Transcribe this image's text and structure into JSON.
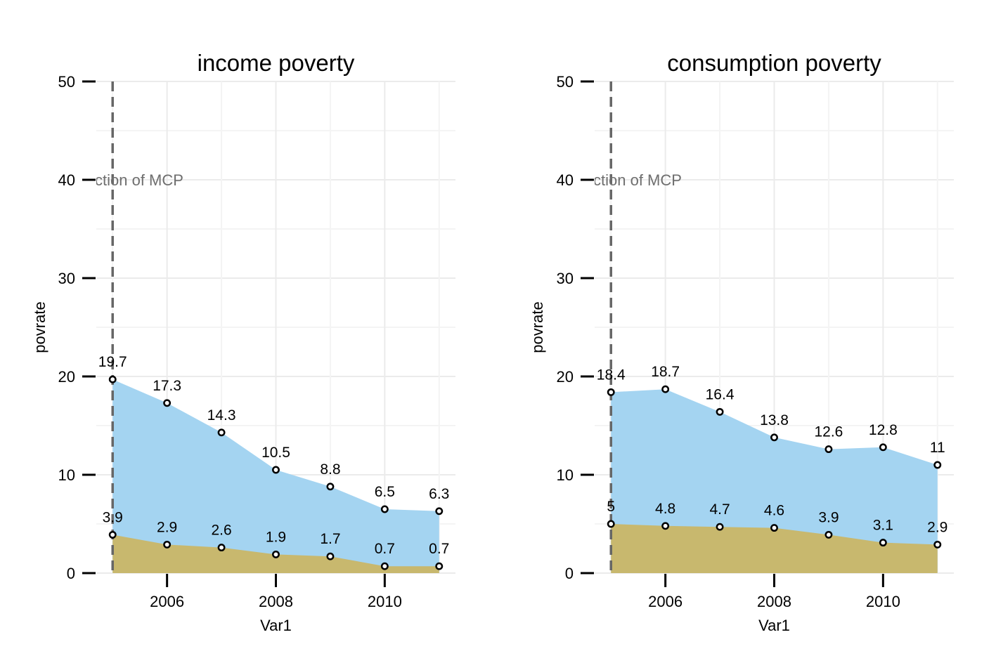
{
  "chart_data": [
    {
      "type": "area",
      "title": "income poverty",
      "xlabel": "Var1",
      "ylabel": "povrate",
      "x": [
        2005,
        2006,
        2007,
        2008,
        2009,
        2010,
        2011
      ],
      "xticks": [
        "2006",
        "2008",
        "2010"
      ],
      "yticks": [
        "0",
        "10",
        "20",
        "30",
        "40",
        "50"
      ],
      "ylim": [
        0,
        50
      ],
      "xlim": [
        2004.7,
        2011.3
      ],
      "grid": true,
      "series": [
        {
          "values": [
            19.7,
            17.3,
            14.3,
            10.5,
            8.8,
            6.5,
            6.3
          ],
          "labels": [
            "19.7",
            "17.3",
            "14.3",
            "10.5",
            "8.8",
            "6.5",
            "6.3"
          ],
          "color": "#a4d4f1"
        },
        {
          "values": [
            3.9,
            2.9,
            2.6,
            1.9,
            1.7,
            0.7,
            0.7
          ],
          "labels": [
            "3.9",
            "2.9",
            "2.6",
            "1.9",
            "1.7",
            "0.7",
            "0.7"
          ],
          "color": "#c8b86e"
        }
      ],
      "vline": {
        "x": 2005,
        "label": "ction of MCP"
      }
    },
    {
      "type": "area",
      "title": "consumption poverty",
      "xlabel": "Var1",
      "ylabel": "povrate",
      "x": [
        2005,
        2006,
        2007,
        2008,
        2009,
        2010,
        2011
      ],
      "xticks": [
        "2006",
        "2008",
        "2010"
      ],
      "yticks": [
        "0",
        "10",
        "20",
        "30",
        "40",
        "50"
      ],
      "ylim": [
        0,
        50
      ],
      "xlim": [
        2004.7,
        2011.3
      ],
      "grid": true,
      "series": [
        {
          "values": [
            18.4,
            18.7,
            16.4,
            13.8,
            12.6,
            12.8,
            11
          ],
          "labels": [
            "18.4",
            "18.7",
            "16.4",
            "13.8",
            "12.6",
            "12.8",
            "11"
          ],
          "color": "#a4d4f1"
        },
        {
          "values": [
            5,
            4.8,
            4.7,
            4.6,
            3.9,
            3.1,
            2.9
          ],
          "labels": [
            "5",
            "4.8",
            "4.7",
            "4.6",
            "3.9",
            "3.1",
            "2.9"
          ],
          "color": "#c8b86e"
        }
      ],
      "vline": {
        "x": 2005,
        "label": "ction of MCP"
      }
    }
  ]
}
